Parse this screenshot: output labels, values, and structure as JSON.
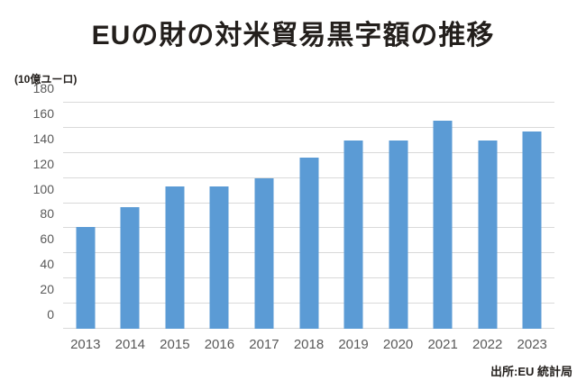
{
  "title": "EUの財の対米貿易黒字額の推移",
  "unit_label": "(10億ユーロ)",
  "source": "出所:EU 統計局",
  "colors": {
    "bar": "#5b9bd5",
    "grid": "#d9d9d9",
    "tick_text": "#595959",
    "title_text": "#231f1c",
    "background": "#ffffff"
  },
  "chart_data": {
    "type": "bar",
    "title": "EUの財の対米貿易黒字額の推移",
    "xlabel": "",
    "ylabel": "(10億ユーロ)",
    "categories": [
      "2013",
      "2014",
      "2015",
      "2016",
      "2017",
      "2018",
      "2019",
      "2020",
      "2021",
      "2022",
      "2023"
    ],
    "values": [
      81,
      97,
      113,
      113,
      120,
      136,
      150,
      150,
      166,
      150,
      157
    ],
    "ylim": [
      0,
      180
    ],
    "ytick_step": 20,
    "grid": true,
    "legend": "none",
    "source": "出所:EU 統計局"
  }
}
